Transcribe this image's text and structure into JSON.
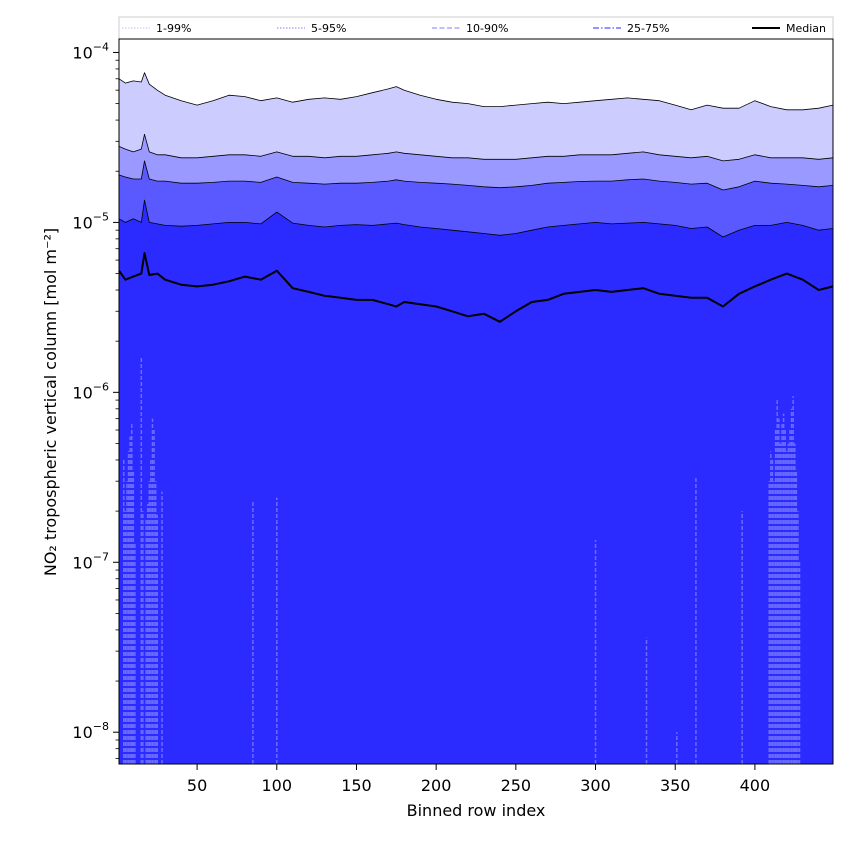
{
  "chart_data": {
    "type": "area",
    "xlabel": "Binned row index",
    "ylabel": "NO₂ tropospheric vertical column [mol m⁻²]",
    "yscale": "log",
    "xlim": [
      1,
      449
    ],
    "ylim": [
      6.5e-09,
      0.00012
    ],
    "x_ticks": [
      50,
      100,
      150,
      200,
      250,
      300,
      350,
      400
    ],
    "y_ticks": [
      {
        "value": 1e-08,
        "mantissa": "10",
        "exp": "−8"
      },
      {
        "value": 1e-07,
        "mantissa": "10",
        "exp": "−7"
      },
      {
        "value": 1e-06,
        "mantissa": "10",
        "exp": "−6"
      },
      {
        "value": 1e-05,
        "mantissa": "10",
        "exp": "−5"
      },
      {
        "value": 0.0001,
        "mantissa": "10",
        "exp": "−4"
      }
    ],
    "legend": {
      "placement": "top",
      "entries": [
        {
          "label": "1-99%",
          "style": "dotted",
          "color": "#ccccff"
        },
        {
          "label": "5-95%",
          "style": "dotted",
          "color": "#9999ff"
        },
        {
          "label": "10-90%",
          "style": "dashed",
          "color": "#9999ff"
        },
        {
          "label": "25-75%",
          "style": "dashdot",
          "color": "#5555ff"
        },
        {
          "label": "Median",
          "style": "solid",
          "color": "#000000"
        }
      ]
    },
    "colors": {
      "band_1_99": "#ccccff",
      "band_5_95": "#9999ff",
      "band_10_90": "#5959ff",
      "band_25_75": "#2b2bff",
      "lower_spikes": "#6b6bff",
      "median": "#000000"
    },
    "x": [
      1,
      5,
      10,
      15,
      17,
      20,
      25,
      30,
      40,
      50,
      60,
      70,
      80,
      90,
      100,
      110,
      120,
      130,
      140,
      150,
      160,
      170,
      175,
      180,
      190,
      200,
      210,
      220,
      230,
      240,
      250,
      260,
      270,
      280,
      290,
      300,
      310,
      320,
      330,
      340,
      350,
      360,
      370,
      380,
      390,
      400,
      410,
      420,
      430,
      440,
      449
    ],
    "series": [
      {
        "name": "1-99%",
        "values": [
          7e-05,
          6.6e-05,
          6.8e-05,
          6.7e-05,
          7.6e-05,
          6.5e-05,
          6e-05,
          5.6e-05,
          5.2e-05,
          4.9e-05,
          5.2e-05,
          5.6e-05,
          5.5e-05,
          5.2e-05,
          5.4e-05,
          5.1e-05,
          5.3e-05,
          5.4e-05,
          5.3e-05,
          5.5e-05,
          5.8e-05,
          6.1e-05,
          6.3e-05,
          6e-05,
          5.6e-05,
          5.3e-05,
          5.1e-05,
          5e-05,
          4.8e-05,
          4.8e-05,
          4.9e-05,
          5e-05,
          5.1e-05,
          5e-05,
          5.1e-05,
          5.2e-05,
          5.3e-05,
          5.4e-05,
          5.3e-05,
          5.2e-05,
          4.9e-05,
          4.6e-05,
          4.9e-05,
          4.7e-05,
          4.7e-05,
          5.2e-05,
          4.8e-05,
          4.6e-05,
          4.6e-05,
          4.7e-05,
          4.9e-05
        ]
      },
      {
        "name": "5-95%",
        "values": [
          2.8e-05,
          2.7e-05,
          2.6e-05,
          2.7e-05,
          3.3e-05,
          2.6e-05,
          2.5e-05,
          2.5e-05,
          2.4e-05,
          2.4e-05,
          2.45e-05,
          2.5e-05,
          2.5e-05,
          2.45e-05,
          2.6e-05,
          2.45e-05,
          2.45e-05,
          2.4e-05,
          2.45e-05,
          2.45e-05,
          2.5e-05,
          2.55e-05,
          2.6e-05,
          2.55e-05,
          2.5e-05,
          2.45e-05,
          2.4e-05,
          2.4e-05,
          2.35e-05,
          2.35e-05,
          2.35e-05,
          2.4e-05,
          2.45e-05,
          2.45e-05,
          2.5e-05,
          2.5e-05,
          2.5e-05,
          2.55e-05,
          2.6e-05,
          2.5e-05,
          2.45e-05,
          2.4e-05,
          2.45e-05,
          2.3e-05,
          2.35e-05,
          2.5e-05,
          2.4e-05,
          2.4e-05,
          2.4e-05,
          2.35e-05,
          2.4e-05
        ]
      },
      {
        "name": "10-90%",
        "values": [
          1.9e-05,
          1.85e-05,
          1.8e-05,
          1.8e-05,
          2.3e-05,
          1.8e-05,
          1.75e-05,
          1.75e-05,
          1.7e-05,
          1.7e-05,
          1.72e-05,
          1.75e-05,
          1.75e-05,
          1.72e-05,
          1.85e-05,
          1.72e-05,
          1.7e-05,
          1.68e-05,
          1.7e-05,
          1.7e-05,
          1.72e-05,
          1.75e-05,
          1.78e-05,
          1.75e-05,
          1.72e-05,
          1.7e-05,
          1.68e-05,
          1.65e-05,
          1.62e-05,
          1.6e-05,
          1.62e-05,
          1.65e-05,
          1.7e-05,
          1.72e-05,
          1.74e-05,
          1.75e-05,
          1.75e-05,
          1.78e-05,
          1.8e-05,
          1.75e-05,
          1.72e-05,
          1.68e-05,
          1.7e-05,
          1.55e-05,
          1.62e-05,
          1.75e-05,
          1.7e-05,
          1.68e-05,
          1.65e-05,
          1.62e-05,
          1.65e-05
        ]
      },
      {
        "name": "25-75%",
        "values": [
          1.05e-05,
          1e-05,
          1.05e-05,
          1e-05,
          1.35e-05,
          1e-05,
          9.8e-06,
          9.6e-06,
          9.5e-06,
          9.6e-06,
          9.8e-06,
          1e-05,
          1e-05,
          9.8e-06,
          1.15e-05,
          9.9e-06,
          9.6e-06,
          9.4e-06,
          9.6e-06,
          9.7e-06,
          9.6e-06,
          9.8e-06,
          9.9e-06,
          9.7e-06,
          9.4e-06,
          9.2e-06,
          9e-06,
          8.8e-06,
          8.6e-06,
          8.4e-06,
          8.6e-06,
          9e-06,
          9.4e-06,
          9.6e-06,
          9.8e-06,
          1e-05,
          9.8e-06,
          9.9e-06,
          1e-05,
          9.8e-06,
          9.6e-06,
          9.2e-06,
          9.4e-06,
          8.2e-06,
          9e-06,
          9.6e-06,
          9.6e-06,
          1e-05,
          9.6e-06,
          9e-06,
          9.2e-06
        ]
      },
      {
        "name": "Median",
        "values": [
          5.2e-06,
          4.6e-06,
          4.8e-06,
          5e-06,
          6.6e-06,
          4.9e-06,
          5e-06,
          4.6e-06,
          4.3e-06,
          4.2e-06,
          4.3e-06,
          4.5e-06,
          4.8e-06,
          4.6e-06,
          5.2e-06,
          4.1e-06,
          3.9e-06,
          3.7e-06,
          3.6e-06,
          3.5e-06,
          3.5e-06,
          3.3e-06,
          3.2e-06,
          3.4e-06,
          3.3e-06,
          3.2e-06,
          3e-06,
          2.8e-06,
          2.9e-06,
          2.6e-06,
          3e-06,
          3.4e-06,
          3.5e-06,
          3.8e-06,
          3.9e-06,
          4e-06,
          3.9e-06,
          4e-06,
          4.1e-06,
          3.8e-06,
          3.7e-06,
          3.6e-06,
          3.6e-06,
          3.2e-06,
          3.8e-06,
          4.2e-06,
          4.6e-06,
          5e-06,
          4.6e-06,
          4e-06,
          4.2e-06
        ]
      }
    ],
    "lower_spikes": [
      {
        "x": 4,
        "value": 4e-07
      },
      {
        "x": 5,
        "value": 2e-07
      },
      {
        "x": 6,
        "value": 3e-07
      },
      {
        "x": 7,
        "value": 4.5e-07
      },
      {
        "x": 8,
        "value": 5.5e-07
      },
      {
        "x": 9,
        "value": 6.5e-07
      },
      {
        "x": 10,
        "value": 3.5e-07
      },
      {
        "x": 11,
        "value": 1.3e-07
      },
      {
        "x": 15,
        "value": 1.6e-06
      },
      {
        "x": 16,
        "value": 2e-07
      },
      {
        "x": 18,
        "value": 1.8e-07
      },
      {
        "x": 19,
        "value": 2.2e-07
      },
      {
        "x": 20,
        "value": 3e-07
      },
      {
        "x": 21,
        "value": 4e-07
      },
      {
        "x": 22,
        "value": 7e-07
      },
      {
        "x": 23,
        "value": 6e-07
      },
      {
        "x": 24,
        "value": 3e-07
      },
      {
        "x": 25,
        "value": 1.9e-07
      },
      {
        "x": 28,
        "value": 2.6e-07
      },
      {
        "x": 85,
        "value": 2.3e-07
      },
      {
        "x": 100,
        "value": 2.4e-07
      },
      {
        "x": 300,
        "value": 1.35e-07
      },
      {
        "x": 332,
        "value": 3.6e-08
      },
      {
        "x": 351,
        "value": 1e-08
      },
      {
        "x": 363,
        "value": 3.2e-07
      },
      {
        "x": 392,
        "value": 2e-07
      },
      {
        "x": 409,
        "value": 3e-07
      },
      {
        "x": 410,
        "value": 4.5e-07
      },
      {
        "x": 411,
        "value": 4e-07
      },
      {
        "x": 412,
        "value": 3e-07
      },
      {
        "x": 413,
        "value": 6e-07
      },
      {
        "x": 414,
        "value": 9e-07
      },
      {
        "x": 415,
        "value": 7e-07
      },
      {
        "x": 416,
        "value": 5e-07
      },
      {
        "x": 417,
        "value": 6.5e-07
      },
      {
        "x": 418,
        "value": 7.5e-07
      },
      {
        "x": 419,
        "value": 6e-07
      },
      {
        "x": 420,
        "value": 4.5e-07
      },
      {
        "x": 421,
        "value": 5e-07
      },
      {
        "x": 422,
        "value": 6e-07
      },
      {
        "x": 423,
        "value": 8e-07
      },
      {
        "x": 424,
        "value": 9.5e-07
      },
      {
        "x": 425,
        "value": 5e-07
      },
      {
        "x": 426,
        "value": 3.5e-07
      },
      {
        "x": 427,
        "value": 2e-07
      },
      {
        "x": 428,
        "value": 1e-07
      }
    ]
  }
}
